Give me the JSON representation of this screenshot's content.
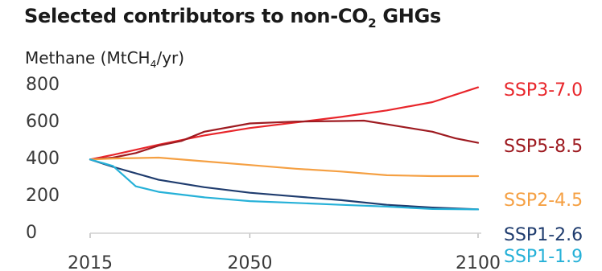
{
  "chart_data": {
    "type": "line",
    "title_parts": [
      "Selected contributors to non-CO",
      "2",
      " GHGs"
    ],
    "subtitle_parts": [
      "Methane (MtCH",
      "4",
      "/yr)"
    ],
    "xlabel": "",
    "ylabel": "Methane (MtCH4/yr)",
    "xlim": [
      2015,
      2100
    ],
    "ylim": [
      0,
      800
    ],
    "x_ticks": [
      "2015",
      "2050",
      "2100"
    ],
    "y_ticks": [
      "0",
      "200",
      "400",
      "600",
      "800"
    ],
    "grid": false,
    "legend": "direct labels at right end of lines",
    "series": [
      {
        "name": "SSP3-7.0",
        "color": "#e8262b",
        "points": [
          [
            2015,
            390
          ],
          [
            2020,
            415
          ],
          [
            2030,
            470
          ],
          [
            2040,
            520
          ],
          [
            2050,
            560
          ],
          [
            2060,
            590
          ],
          [
            2070,
            620
          ],
          [
            2080,
            655
          ],
          [
            2090,
            700
          ],
          [
            2100,
            780
          ]
        ]
      },
      {
        "name": "SSP5-8.5",
        "color": "#9e1b21",
        "points": [
          [
            2015,
            390
          ],
          [
            2020,
            400
          ],
          [
            2025,
            425
          ],
          [
            2030,
            465
          ],
          [
            2035,
            490
          ],
          [
            2040,
            540
          ],
          [
            2050,
            585
          ],
          [
            2060,
            595
          ],
          [
            2070,
            598
          ],
          [
            2075,
            600
          ],
          [
            2080,
            580
          ],
          [
            2085,
            560
          ],
          [
            2090,
            540
          ],
          [
            2095,
            505
          ],
          [
            2100,
            480
          ]
        ]
      },
      {
        "name": "SSP2-4.5",
        "color": "#f5a043",
        "points": [
          [
            2015,
            390
          ],
          [
            2020,
            395
          ],
          [
            2030,
            400
          ],
          [
            2040,
            380
          ],
          [
            2050,
            360
          ],
          [
            2060,
            340
          ],
          [
            2070,
            325
          ],
          [
            2080,
            305
          ],
          [
            2090,
            300
          ],
          [
            2100,
            300
          ]
        ]
      },
      {
        "name": "SSP1-2.6",
        "color": "#1f3c6e",
        "points": [
          [
            2015,
            390
          ],
          [
            2020,
            350
          ],
          [
            2030,
            280
          ],
          [
            2040,
            240
          ],
          [
            2050,
            210
          ],
          [
            2060,
            190
          ],
          [
            2070,
            170
          ],
          [
            2080,
            145
          ],
          [
            2090,
            130
          ],
          [
            2100,
            120
          ]
        ]
      },
      {
        "name": "SSP1-1.9",
        "color": "#26b1d8",
        "points": [
          [
            2015,
            390
          ],
          [
            2020,
            355
          ],
          [
            2025,
            245
          ],
          [
            2030,
            215
          ],
          [
            2040,
            185
          ],
          [
            2050,
            165
          ],
          [
            2060,
            155
          ],
          [
            2070,
            145
          ],
          [
            2080,
            135
          ],
          [
            2090,
            122
          ],
          [
            2100,
            120
          ]
        ]
      }
    ]
  }
}
